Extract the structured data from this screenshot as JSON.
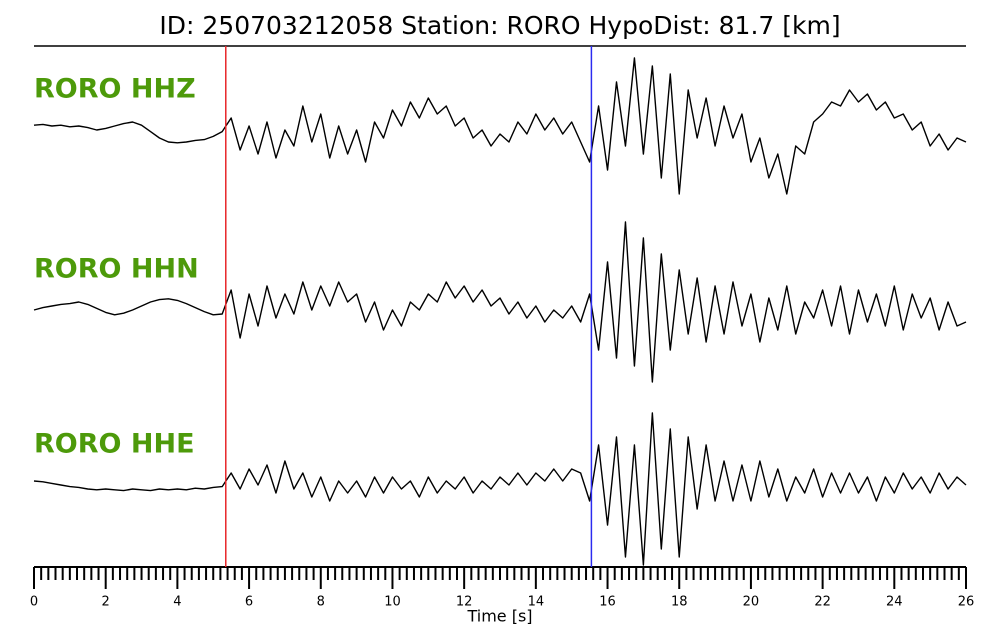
{
  "chart_data": {
    "type": "seismogram",
    "title": "ID: 250703212058   Station: RORO   HypoDist:    81.7 [km]",
    "xlabel": "Time [s]",
    "xlim": [
      0,
      26
    ],
    "xticks": [
      0,
      2,
      4,
      6,
      8,
      10,
      12,
      14,
      16,
      18,
      20,
      22,
      24,
      26
    ],
    "minor_tick_interval": 0.2,
    "ylim": [
      -1,
      1
    ],
    "label_color": "#4d9a0a",
    "markers": [
      {
        "x": 5.35,
        "color": "#e8262a"
      },
      {
        "x": 15.55,
        "color": "#2b2bf0"
      }
    ],
    "x": [
      0,
      0.25,
      0.5,
      0.75,
      1,
      1.25,
      1.5,
      1.75,
      2,
      2.25,
      2.5,
      2.75,
      3,
      3.25,
      3.5,
      3.75,
      4,
      4.25,
      4.5,
      4.75,
      5,
      5.25,
      5.5,
      5.75,
      6,
      6.25,
      6.5,
      6.75,
      7,
      7.25,
      7.5,
      7.75,
      8,
      8.25,
      8.5,
      8.75,
      9,
      9.25,
      9.5,
      9.75,
      10,
      10.25,
      10.5,
      10.75,
      11,
      11.25,
      11.5,
      11.75,
      12,
      12.25,
      12.5,
      12.75,
      13,
      13.25,
      13.5,
      13.75,
      14,
      14.25,
      14.5,
      14.75,
      15,
      15.25,
      15.5,
      15.75,
      16,
      16.25,
      16.5,
      16.75,
      17,
      17.25,
      17.5,
      17.75,
      18,
      18.25,
      18.5,
      18.75,
      19,
      19.25,
      19.5,
      19.75,
      20,
      20.25,
      20.5,
      20.75,
      21,
      21.25,
      21.5,
      21.75,
      22,
      22.25,
      22.5,
      22.75,
      23,
      23.25,
      23.5,
      23.75,
      24,
      24.25,
      24.5,
      24.75,
      25,
      25.25,
      25.5,
      25.75,
      26
    ],
    "series": [
      {
        "name": "RORO HHZ",
        "color": "#000000",
        "values": [
          0.06,
          0.07,
          0.05,
          0.06,
          0.04,
          0.05,
          0.03,
          0.0,
          0.02,
          0.05,
          0.08,
          0.1,
          0.06,
          -0.02,
          -0.1,
          -0.15,
          -0.16,
          -0.15,
          -0.13,
          -0.12,
          -0.08,
          -0.02,
          0.15,
          -0.25,
          0.05,
          -0.3,
          0.1,
          -0.35,
          0.0,
          -0.2,
          0.3,
          -0.15,
          0.2,
          -0.35,
          0.05,
          -0.3,
          0.0,
          -0.4,
          0.1,
          -0.1,
          0.25,
          0.05,
          0.35,
          0.15,
          0.4,
          0.2,
          0.3,
          0.05,
          0.15,
          -0.1,
          0.0,
          -0.2,
          -0.05,
          -0.15,
          0.1,
          -0.05,
          0.2,
          0.0,
          0.15,
          -0.05,
          0.1,
          -0.15,
          -0.4,
          0.3,
          -0.5,
          0.6,
          -0.2,
          0.9,
          -0.3,
          0.8,
          -0.6,
          0.7,
          -0.8,
          0.5,
          -0.1,
          0.4,
          -0.2,
          0.3,
          -0.1,
          0.2,
          -0.4,
          -0.1,
          -0.6,
          -0.3,
          -0.8,
          -0.2,
          -0.3,
          0.1,
          0.2,
          0.35,
          0.3,
          0.5,
          0.35,
          0.45,
          0.25,
          0.35,
          0.15,
          0.2,
          0.0,
          0.1,
          -0.2,
          -0.05,
          -0.25,
          -0.1,
          -0.15
        ]
      },
      {
        "name": "RORO HHN",
        "color": "#000000",
        "values": [
          0.0,
          0.03,
          0.05,
          0.07,
          0.08,
          0.1,
          0.07,
          0.02,
          -0.03,
          -0.06,
          -0.04,
          0.0,
          0.05,
          0.1,
          0.13,
          0.14,
          0.12,
          0.08,
          0.03,
          -0.02,
          -0.06,
          -0.05,
          0.25,
          -0.35,
          0.2,
          -0.2,
          0.3,
          -0.1,
          0.2,
          -0.05,
          0.35,
          0.0,
          0.3,
          0.05,
          0.35,
          0.1,
          0.2,
          -0.15,
          0.1,
          -0.25,
          0.0,
          -0.2,
          0.1,
          0.0,
          0.2,
          0.1,
          0.35,
          0.15,
          0.3,
          0.1,
          0.25,
          0.05,
          0.15,
          -0.05,
          0.1,
          -0.1,
          0.05,
          -0.15,
          0.0,
          -0.1,
          0.05,
          -0.15,
          0.2,
          -0.5,
          0.6,
          -0.6,
          1.1,
          -0.7,
          0.9,
          -0.9,
          0.7,
          -0.5,
          0.5,
          -0.3,
          0.4,
          -0.4,
          0.3,
          -0.3,
          0.35,
          -0.2,
          0.2,
          -0.4,
          0.15,
          -0.25,
          0.3,
          -0.3,
          0.1,
          -0.1,
          0.25,
          -0.2,
          0.3,
          -0.3,
          0.25,
          -0.15,
          0.2,
          -0.2,
          0.3,
          -0.25,
          0.2,
          -0.1,
          0.15,
          -0.25,
          0.1,
          -0.2,
          -0.15
        ]
      },
      {
        "name": "RORO HHE",
        "color": "#000000",
        "values": [
          0.05,
          0.04,
          0.02,
          0.0,
          -0.02,
          -0.03,
          -0.05,
          -0.06,
          -0.05,
          -0.06,
          -0.07,
          -0.05,
          -0.06,
          -0.07,
          -0.05,
          -0.06,
          -0.05,
          -0.06,
          -0.04,
          -0.05,
          -0.03,
          -0.02,
          0.15,
          -0.05,
          0.2,
          0.0,
          0.25,
          -0.1,
          0.3,
          -0.05,
          0.15,
          -0.15,
          0.1,
          -0.2,
          0.05,
          -0.1,
          0.05,
          -0.15,
          0.1,
          -0.1,
          0.1,
          -0.05,
          0.05,
          -0.15,
          0.1,
          -0.1,
          0.05,
          -0.05,
          0.1,
          -0.1,
          0.05,
          -0.05,
          0.1,
          0.0,
          0.15,
          0.0,
          0.15,
          0.05,
          0.2,
          0.05,
          0.2,
          0.15,
          -0.2,
          0.5,
          -0.5,
          0.6,
          -0.9,
          0.5,
          -1.0,
          0.9,
          -0.8,
          0.7,
          -0.9,
          0.6,
          -0.3,
          0.5,
          -0.2,
          0.3,
          -0.2,
          0.25,
          -0.2,
          0.3,
          -0.15,
          0.2,
          -0.2,
          0.1,
          -0.1,
          0.2,
          -0.15,
          0.15,
          -0.1,
          0.15,
          -0.1,
          0.1,
          -0.2,
          0.1,
          -0.1,
          0.15,
          -0.05,
          0.1,
          -0.1,
          0.15,
          -0.05,
          0.1,
          0.0
        ]
      }
    ]
  }
}
